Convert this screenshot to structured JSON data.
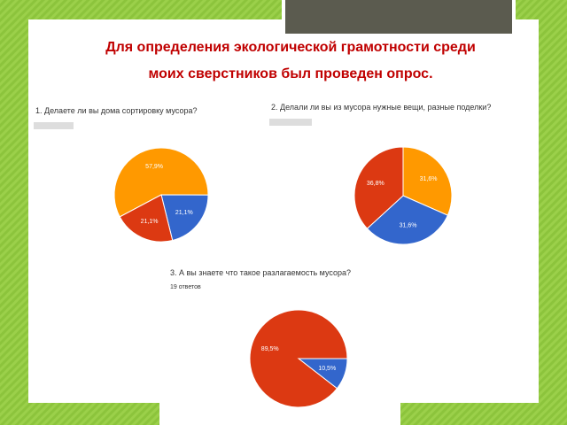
{
  "slide": {
    "title_line1": "Для определения экологической грамотности среди",
    "title_line2": "моих сверстников был проведен опрос."
  },
  "chart_data": [
    {
      "type": "pie",
      "title": "1. Делаете ли вы дома сортировку мусора?",
      "values": [
        57.9,
        21.1,
        21.1
      ],
      "value_labels": [
        "57,9%",
        "21,1%",
        "21,1%"
      ],
      "colors": [
        "#ff9900",
        "#3366cc",
        "#dc3912"
      ]
    },
    {
      "type": "pie",
      "title": "2. Делали ли вы из мусора нужные вещи, разные поделки?",
      "values": [
        31.6,
        31.6,
        36.8
      ],
      "value_labels": [
        "31,6%",
        "31,6%",
        "36,8%"
      ],
      "colors": [
        "#ff9900",
        "#3366cc",
        "#dc3912"
      ]
    },
    {
      "type": "pie",
      "title": "3. А вы знаете что такое разлагаемость мусора?",
      "subtitle": "19 ответов",
      "values": [
        10.5,
        89.5
      ],
      "value_labels": [
        "10,5%",
        "89,5%"
      ],
      "colors": [
        "#3366cc",
        "#dc3912"
      ]
    }
  ]
}
